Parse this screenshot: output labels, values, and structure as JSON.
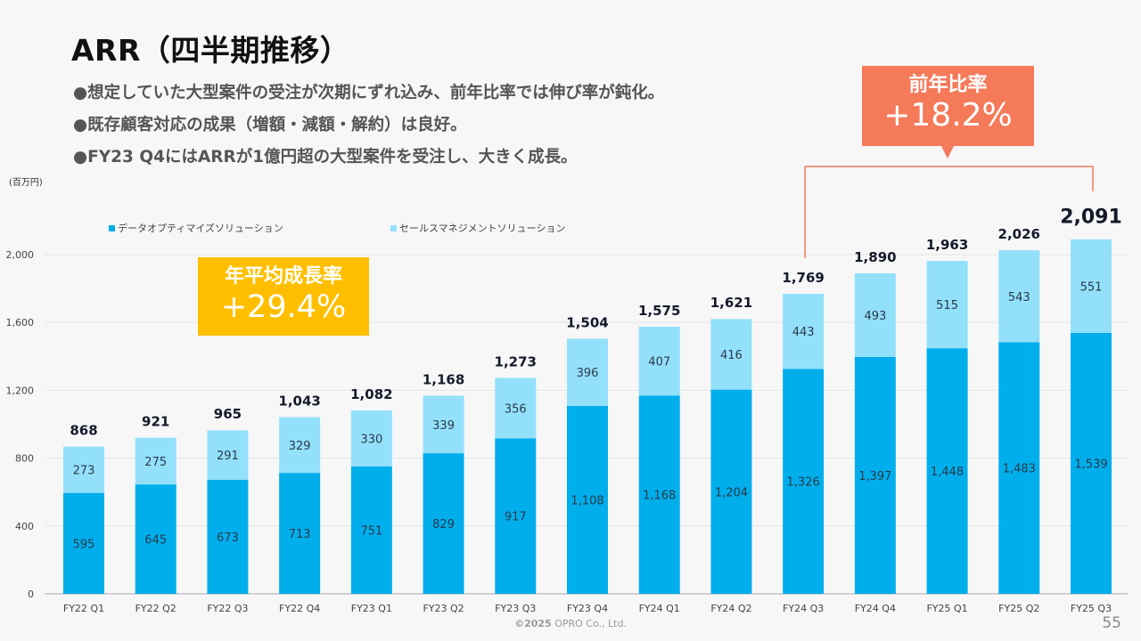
{
  "slide": {
    "title": "ARR（四半期推移）",
    "bullets": [
      "●想定していた大型案件の受注が次期にずれ込み、前年比率では伸び率が鈍化。",
      "●既存顧客対応の成果（増額・減額・解約）は良好。",
      "●FY23 Q4にはARRが1億円超の大型案件を受注し、大きく成長。"
    ],
    "callouts": {
      "yoy": {
        "label": "前年比率",
        "value": "+18.2%",
        "color": "#f47a5a"
      },
      "cagr": {
        "label": "年平均成長率",
        "value": "+29.4%",
        "color": "#ffbf00"
      }
    },
    "footer": {
      "copyright_symbol_year": "©2025",
      "company": "OPRO Co., Ltd."
    },
    "page_number": "55"
  },
  "chart_data": {
    "type": "bar",
    "stacked": true,
    "title": "",
    "unit_label": "(百万円)",
    "xlabel": "",
    "ylabel": "",
    "ylim": [
      0,
      2000
    ],
    "yticks": [
      0,
      400,
      800,
      1200,
      1600,
      2000
    ],
    "ytick_labels": [
      "0",
      "400",
      "800",
      "1,200",
      "1,600",
      "2,000"
    ],
    "grid": true,
    "legend_position": "top",
    "categories": [
      "FY22 Q1",
      "FY22 Q2",
      "FY22 Q3",
      "FY22 Q4",
      "FY23 Q1",
      "FY23 Q2",
      "FY23 Q3",
      "FY23 Q4",
      "FY24 Q1",
      "FY24 Q2",
      "FY24 Q3",
      "FY24 Q4",
      "FY25 Q1",
      "FY25 Q2",
      "FY25 Q3"
    ],
    "series": [
      {
        "name": "データオプティマイズソリューション",
        "color": "#00aeec",
        "values": [
          595,
          645,
          673,
          713,
          751,
          829,
          917,
          1108,
          1168,
          1204,
          1326,
          1397,
          1448,
          1483,
          1539
        ],
        "labels": [
          "595",
          "645",
          "673",
          "713",
          "751",
          "829",
          "917",
          "1,108",
          "1,168",
          "1,204",
          "1,326",
          "1,397",
          "1,448",
          "1,483",
          "1,539"
        ]
      },
      {
        "name": "セールスマネジメントソリューション",
        "color": "#93e0fb",
        "values": [
          273,
          275,
          291,
          329,
          330,
          339,
          356,
          396,
          407,
          416,
          443,
          493,
          515,
          543,
          551
        ],
        "labels": [
          "273",
          "275",
          "291",
          "329",
          "330",
          "339",
          "356",
          "396",
          "407",
          "416",
          "443",
          "493",
          "515",
          "543",
          "551"
        ]
      }
    ],
    "totals": [
      868,
      921,
      965,
      1043,
      1082,
      1168,
      1273,
      1504,
      1575,
      1621,
      1769,
      1890,
      1963,
      2026,
      2091
    ],
    "total_labels": [
      "868",
      "921",
      "965",
      "1,043",
      "1,082",
      "1,168",
      "1,273",
      "1,504",
      "1,575",
      "1,621",
      "1,769",
      "1,890",
      "1,963",
      "2,026",
      "2,091"
    ],
    "annotations": [
      {
        "text": "前年比率 +18.2%",
        "from": "FY24 Q3",
        "to": "FY25 Q3"
      },
      {
        "text": "年平均成長率 +29.4%"
      }
    ]
  }
}
